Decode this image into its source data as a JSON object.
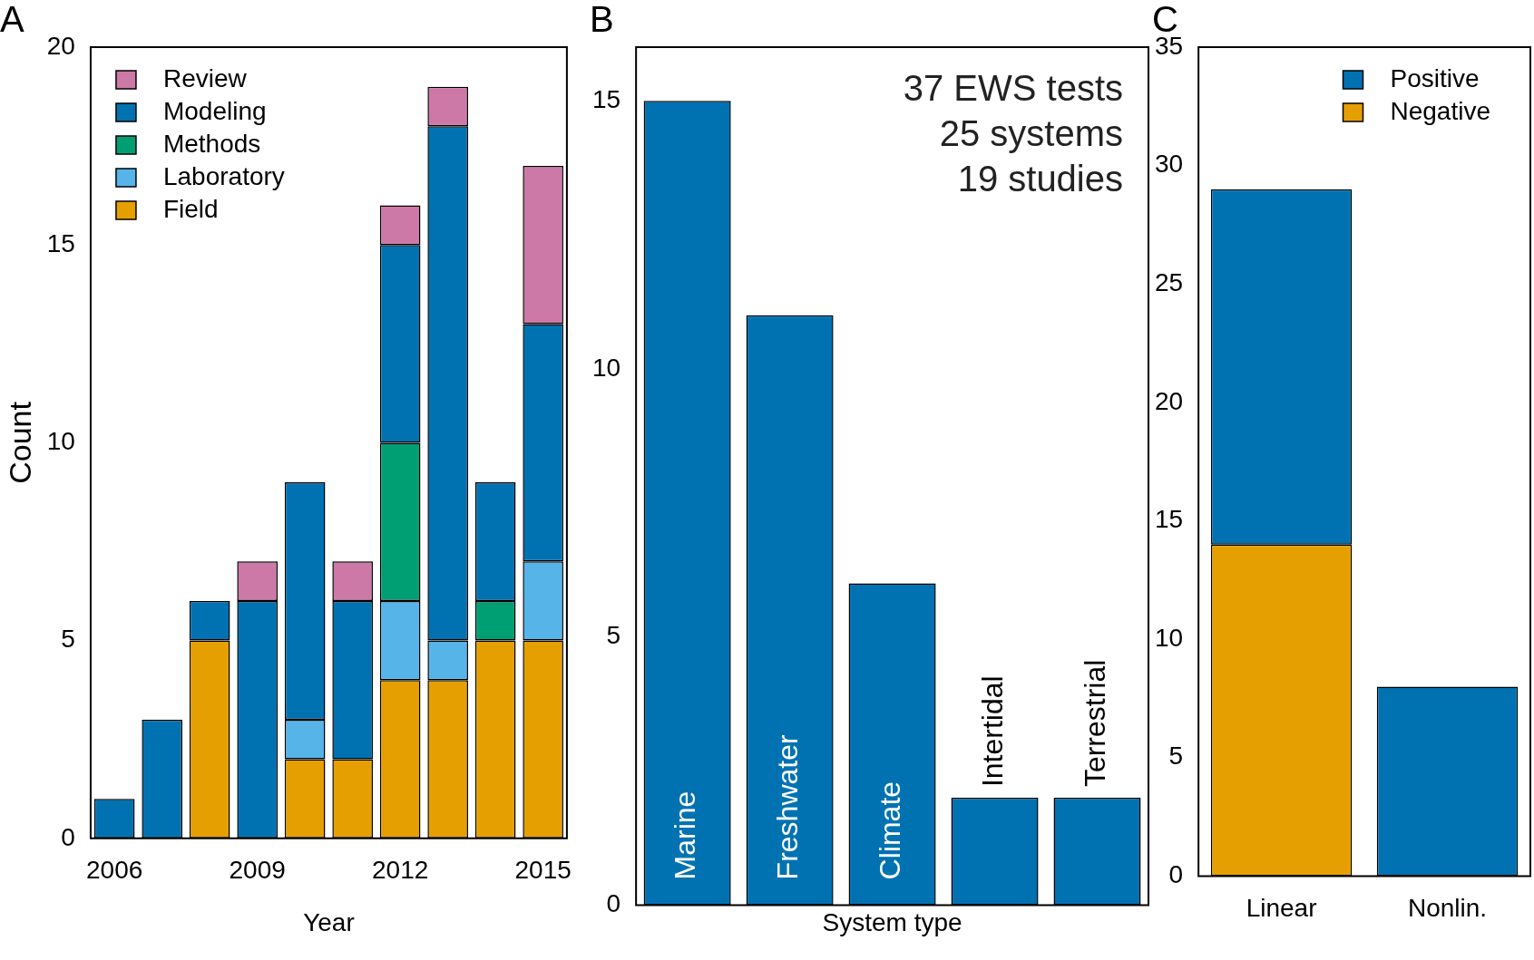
{
  "chart_data": [
    {
      "type": "bar",
      "title": "A",
      "xlabel": "Year",
      "ylabel": "Count",
      "categories": [
        "2006",
        null,
        null,
        "2009",
        null,
        null,
        "2012",
        null,
        null,
        "2015"
      ],
      "stacked": true,
      "ylim": [
        0,
        20
      ],
      "yticks": [
        0,
        5,
        10,
        15,
        20
      ],
      "legend": "top left",
      "series": [
        {
          "name": "Field",
          "color": "#e69f00",
          "values": [
            0,
            0,
            5,
            0,
            2,
            2,
            4,
            4,
            5,
            5
          ]
        },
        {
          "name": "Laboratory",
          "color": "#56b4e9",
          "values": [
            0,
            0,
            0,
            0,
            1,
            0,
            2,
            1,
            0,
            2
          ]
        },
        {
          "name": "Methods",
          "color": "#009e73",
          "values": [
            0,
            0,
            0,
            0,
            0,
            0,
            4,
            0,
            1,
            0
          ]
        },
        {
          "name": "Modeling",
          "color": "#0072b2",
          "values": [
            1,
            3,
            1,
            6,
            6,
            4,
            5,
            13,
            3,
            6
          ]
        },
        {
          "name": "Review",
          "color": "#cc79a7",
          "values": [
            0,
            0,
            0,
            1,
            0,
            1,
            1,
            1,
            0,
            4
          ]
        }
      ]
    },
    {
      "type": "bar",
      "title": "B",
      "xlabel": "System type",
      "categories": [
        "Marine",
        "Freshwater",
        "Climate",
        "Intertidal",
        "Terrestrial"
      ],
      "values": [
        15,
        11,
        6,
        2,
        2
      ],
      "color": "#0072b2",
      "ylim": [
        0,
        16
      ],
      "yticks": [
        0,
        5,
        10,
        15
      ],
      "annotations": [
        "37 EWS tests",
        "25 systems",
        "19 studies"
      ]
    },
    {
      "type": "bar",
      "title": "C",
      "categories": [
        "Linear",
        "Nonlin."
      ],
      "stacked": true,
      "ylim": [
        0,
        35
      ],
      "yticks": [
        0,
        5,
        10,
        15,
        20,
        25,
        30,
        35
      ],
      "legend": "top right",
      "series": [
        {
          "name": "Negative",
          "color": "#e69f00",
          "values": [
            14,
            0
          ]
        },
        {
          "name": "Positive",
          "color": "#0072b2",
          "values": [
            15,
            8
          ]
        }
      ]
    }
  ]
}
